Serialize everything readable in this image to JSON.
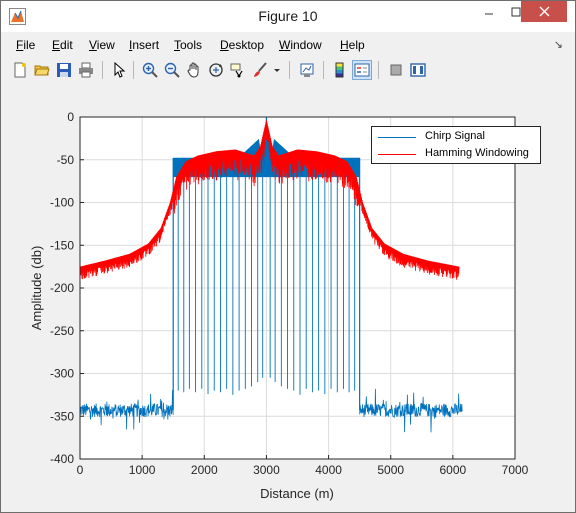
{
  "window": {
    "title": "Figure 10"
  },
  "menu": {
    "items": [
      {
        "label": "File",
        "ul": "F",
        "rest": "ile"
      },
      {
        "label": "Edit",
        "ul": "E",
        "rest": "dit"
      },
      {
        "label": "View",
        "ul": "V",
        "rest": "iew"
      },
      {
        "label": "Insert",
        "ul": "I",
        "rest": "nsert"
      },
      {
        "label": "Tools",
        "ul": "T",
        "rest": "ools"
      },
      {
        "label": "Desktop",
        "ul": "D",
        "rest": "esktop"
      },
      {
        "label": "Window",
        "ul": "W",
        "rest": "indow"
      },
      {
        "label": "Help",
        "ul": "H",
        "rest": "elp"
      }
    ]
  },
  "toolbar": {
    "icons": [
      "new-figure-icon",
      "open-file-icon",
      "save-icon",
      "print-icon",
      "edit-plot-arrow-icon",
      "zoom-in-icon",
      "zoom-out-icon",
      "pan-hand-icon",
      "rotate-3d-icon",
      "data-cursor-icon",
      "brush-icon",
      "brush-dropdown-icon",
      "link-plot-icon",
      "colorbar-icon",
      "legend-icon",
      "hide-plot-tools-icon",
      "show-plot-tools-icon"
    ]
  },
  "colors": {
    "chirp": "#0072bd",
    "hamming": "#ff0000",
    "grid": "#dcdcdc",
    "axes": "#262626"
  },
  "chart_data": {
    "type": "line",
    "title": "",
    "xlabel": "Distance (m)",
    "ylabel": "Amplitude (db)",
    "xlim": [
      0,
      7000
    ],
    "ylim": [
      -400,
      0
    ],
    "xticks": [
      0,
      1000,
      2000,
      3000,
      4000,
      5000,
      6000,
      7000
    ],
    "yticks": [
      0,
      -50,
      -100,
      -150,
      -200,
      -250,
      -300,
      -350,
      -400
    ],
    "grid": true,
    "legend_position": "top-right",
    "series": [
      {
        "name": "Chirp Signal",
        "color": "#0072bd",
        "noise_floor_segments": [
          {
            "x": [
              0,
              1500
            ],
            "level": -343
          },
          {
            "x": [
              4500,
              6150
            ],
            "level": -343
          }
        ],
        "main_lobe": {
          "x": [
            1500,
            4500
          ],
          "top": -48,
          "peak": {
            "x": 3000,
            "y": 0
          }
        },
        "nulls": [
          {
            "x": 1580,
            "y": -320
          },
          {
            "x": 1670,
            "y": -322
          },
          {
            "x": 1760,
            "y": -318
          },
          {
            "x": 1860,
            "y": -322
          },
          {
            "x": 1960,
            "y": -318
          },
          {
            "x": 2060,
            "y": -324
          },
          {
            "x": 2160,
            "y": -320
          },
          {
            "x": 2260,
            "y": -322
          },
          {
            "x": 2360,
            "y": -318
          },
          {
            "x": 2460,
            "y": -325
          },
          {
            "x": 2560,
            "y": -320
          },
          {
            "x": 2660,
            "y": -318
          },
          {
            "x": 2760,
            "y": -315
          },
          {
            "x": 2860,
            "y": -310
          },
          {
            "x": 2940,
            "y": -305
          },
          {
            "x": 3060,
            "y": -305
          },
          {
            "x": 3140,
            "y": -310
          },
          {
            "x": 3240,
            "y": -315
          },
          {
            "x": 3340,
            "y": -318
          },
          {
            "x": 3440,
            "y": -320
          },
          {
            "x": 3540,
            "y": -325
          },
          {
            "x": 3640,
            "y": -318
          },
          {
            "x": 3740,
            "y": -322
          },
          {
            "x": 3840,
            "y": -320
          },
          {
            "x": 3940,
            "y": -324
          },
          {
            "x": 4040,
            "y": -318
          },
          {
            "x": 4140,
            "y": -322
          },
          {
            "x": 4240,
            "y": -318
          },
          {
            "x": 4330,
            "y": -322
          },
          {
            "x": 4420,
            "y": -320
          }
        ]
      },
      {
        "name": "Hamming Windowing",
        "color": "#ff0000",
        "envelope": [
          {
            "x": 0,
            "y": -175
          },
          {
            "x": 400,
            "y": -168
          },
          {
            "x": 800,
            "y": -160
          },
          {
            "x": 1100,
            "y": -148
          },
          {
            "x": 1300,
            "y": -130
          },
          {
            "x": 1450,
            "y": -100
          },
          {
            "x": 1550,
            "y": -70
          },
          {
            "x": 1700,
            "y": -52
          },
          {
            "x": 1900,
            "y": -45
          },
          {
            "x": 2200,
            "y": -40
          },
          {
            "x": 2500,
            "y": -38
          },
          {
            "x": 2800,
            "y": -45
          },
          {
            "x": 2900,
            "y": -35
          },
          {
            "x": 3000,
            "y": -3
          },
          {
            "x": 3100,
            "y": -35
          },
          {
            "x": 3200,
            "y": -45
          },
          {
            "x": 3500,
            "y": -38
          },
          {
            "x": 3800,
            "y": -40
          },
          {
            "x": 4100,
            "y": -45
          },
          {
            "x": 4300,
            "y": -52
          },
          {
            "x": 4450,
            "y": -70
          },
          {
            "x": 4550,
            "y": -100
          },
          {
            "x": 4700,
            "y": -130
          },
          {
            "x": 4900,
            "y": -148
          },
          {
            "x": 5200,
            "y": -160
          },
          {
            "x": 5600,
            "y": -168
          },
          {
            "x": 6100,
            "y": -175
          }
        ]
      }
    ]
  }
}
